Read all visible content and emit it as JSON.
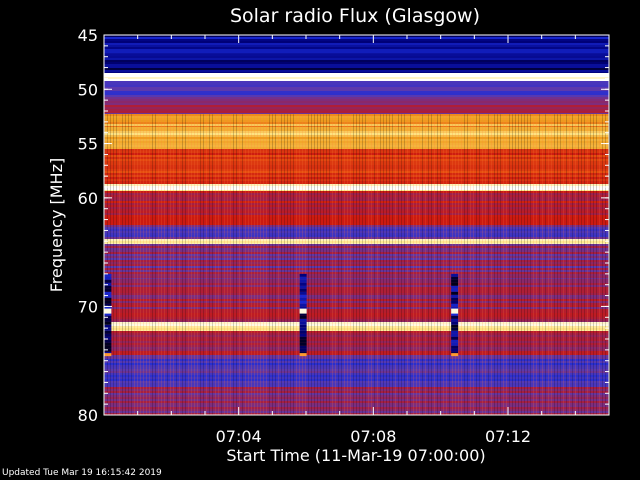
{
  "chart_data": {
    "type": "heatmap",
    "title": "Solar radio Flux (Glasgow)",
    "xlabel": "Start Time (11-Mar-19 07:00:00)",
    "ylabel": "Frequency [MHz]",
    "x_tick_labels": [
      "07:04",
      "07:08",
      "07:12"
    ],
    "x_tick_values_min": [
      4,
      8,
      12
    ],
    "x_range_min": [
      0,
      15
    ],
    "y_tick_labels": [
      "45",
      "50",
      "55",
      "60",
      "70",
      "80"
    ],
    "y_tick_values": [
      45,
      50,
      55,
      60,
      70,
      80
    ],
    "y_range_mhz": [
      45,
      80
    ],
    "bands_mhz": [
      {
        "from": 45,
        "to": 46.8,
        "level": 0.15
      },
      {
        "from": 46.8,
        "to": 48.5,
        "level": 0.12
      },
      {
        "from": 48.5,
        "to": 49.3,
        "level": 1.0
      },
      {
        "from": 49.3,
        "to": 50.8,
        "level": 0.28
      },
      {
        "from": 50.8,
        "to": 52.3,
        "level": 0.42
      },
      {
        "from": 52.3,
        "to": 53.5,
        "level": 0.78
      },
      {
        "from": 53.5,
        "to": 55.5,
        "level": 0.82
      },
      {
        "from": 55.5,
        "to": 58.8,
        "level": 0.6
      },
      {
        "from": 58.8,
        "to": 59.4,
        "level": 0.95
      },
      {
        "from": 59.4,
        "to": 62.5,
        "level": 0.5
      },
      {
        "from": 62.5,
        "to": 63.8,
        "level": 0.35
      },
      {
        "from": 63.8,
        "to": 64.3,
        "level": 0.9
      },
      {
        "from": 64.3,
        "to": 67.5,
        "level": 0.4
      },
      {
        "from": 67.5,
        "to": 71.5,
        "level": 0.45
      },
      {
        "from": 71.5,
        "to": 72.3,
        "level": 0.92
      },
      {
        "from": 72.3,
        "to": 74.5,
        "level": 0.45
      },
      {
        "from": 74.5,
        "to": 77.5,
        "level": 0.3
      },
      {
        "from": 77.5,
        "to": 80,
        "level": 0.42
      }
    ],
    "gaps_min": [
      0.1,
      5.9,
      10.4
    ],
    "colormap": [
      "#000000",
      "#00007a",
      "#1a2bd9",
      "#5a3ab0",
      "#a0204a",
      "#cc1a10",
      "#e85010",
      "#f0a020",
      "#ffe88a",
      "#ffffff"
    ]
  },
  "footer": "Updated Tue Mar 19 16:15:42 2019"
}
